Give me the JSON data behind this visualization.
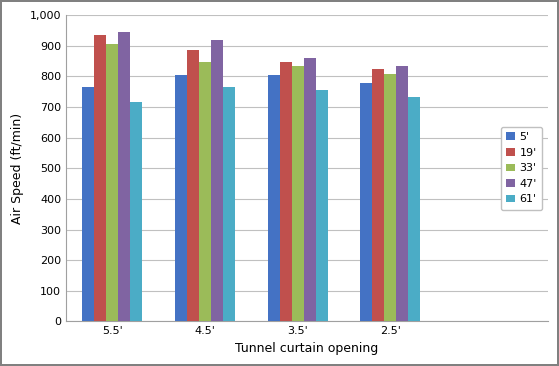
{
  "categories": [
    "5.5'",
    "4.5'",
    "3.5'",
    "2.5'"
  ],
  "series": [
    {
      "label": "5'",
      "values": [
        765,
        803,
        805,
        780
      ],
      "color": "#4472C4"
    },
    {
      "label": "19'",
      "values": [
        935,
        885,
        848,
        825
      ],
      "color": "#C0504D"
    },
    {
      "label": "33'",
      "values": [
        907,
        848,
        833,
        808
      ],
      "color": "#9BBB59"
    },
    {
      "label": "47'",
      "values": [
        945,
        920,
        860,
        835
      ],
      "color": "#8064A2"
    },
    {
      "label": "61'",
      "values": [
        718,
        765,
        757,
        733
      ],
      "color": "#4BACC6"
    }
  ],
  "xlabel": "Tunnel curtain opening",
  "ylabel": "Air Speed (ft/min)",
  "ylim": [
    0,
    1000
  ],
  "yticks": [
    0,
    100,
    200,
    300,
    400,
    500,
    600,
    700,
    800,
    900,
    1000
  ],
  "ytick_labels": [
    "0",
    "100",
    "200",
    "300",
    "400",
    "500",
    "600",
    "700",
    "800",
    "900",
    "1,000"
  ],
  "grid_color": "#C0C0C0",
  "background_color": "#FFFFFF",
  "bar_width": 0.13,
  "figsize": [
    5.59,
    3.66
  ],
  "dpi": 100
}
